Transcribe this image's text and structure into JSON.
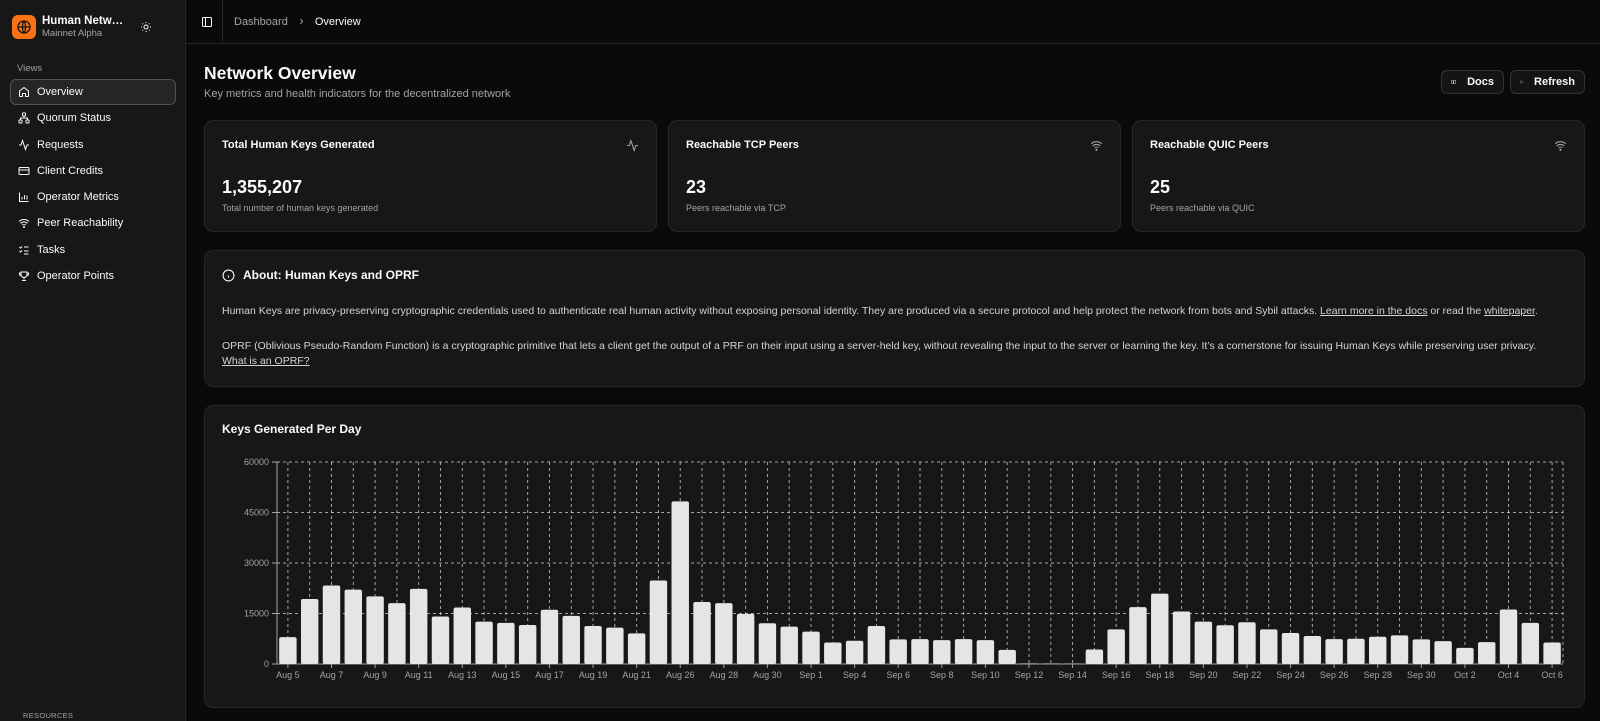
{
  "brand": {
    "name": "Human Network",
    "subtitle": "Mainnet Alpha"
  },
  "sidebar": {
    "section_label": "Views",
    "items": [
      {
        "label": "Overview",
        "icon": "home-icon",
        "active": true
      },
      {
        "label": "Quorum Status",
        "icon": "network-icon"
      },
      {
        "label": "Requests",
        "icon": "activity-icon"
      },
      {
        "label": "Client Credits",
        "icon": "credit-card-icon"
      },
      {
        "label": "Operator Metrics",
        "icon": "bar-chart-icon"
      },
      {
        "label": "Peer Reachability",
        "icon": "wifi-icon"
      },
      {
        "label": "Tasks",
        "icon": "list-checks-icon"
      },
      {
        "label": "Operator Points",
        "icon": "trophy-icon"
      }
    ],
    "resources_label": "RESOURCES"
  },
  "breadcrumb": {
    "parent": "Dashboard",
    "current": "Overview"
  },
  "header": {
    "title": "Network Overview",
    "subtitle": "Key metrics and health indicators for the decentralized network",
    "docs_label": "Docs",
    "refresh_label": "Refresh"
  },
  "stats": [
    {
      "title": "Total Human Keys Generated",
      "value": "1,355,207",
      "desc": "Total number of human keys generated",
      "icon": "activity-icon"
    },
    {
      "title": "Reachable TCP Peers",
      "value": "23",
      "desc": "Peers reachable via TCP",
      "icon": "wifi-icon"
    },
    {
      "title": "Reachable QUIC Peers",
      "value": "25",
      "desc": "Peers reachable via QUIC",
      "icon": "wifi-icon"
    }
  ],
  "about": {
    "title": "About: Human Keys and OPRF",
    "p1_text": "Human Keys are privacy-preserving cryptographic credentials used to authenticate real human activity without exposing personal identity. They are produced via a secure protocol and help protect the network from bots and Sybil attacks.",
    "p1_link1": "Learn more in the docs",
    "p1_mid": "or read the",
    "p1_link2": "whitepaper",
    "p1_end": ".",
    "p2_text": "OPRF (Oblivious Pseudo-Random Function) is a cryptographic primitive that lets a client get the output of a PRF on their input using a server-held key, without revealing the input to the server or learning the key. It’s a cornerstone for issuing Human Keys while preserving user privacy.",
    "p2_link": "What is an OPRF?"
  },
  "chart_data": {
    "type": "bar",
    "title": "Keys Generated Per Day",
    "xlabel": "",
    "ylabel": "",
    "ylim": [
      0,
      60000
    ],
    "yticks": [
      0,
      15000,
      30000,
      45000,
      60000
    ],
    "grid": true,
    "categories": [
      "Aug 5",
      "Aug 6",
      "Aug 7",
      "Aug 8",
      "Aug 9",
      "Aug 10",
      "Aug 11",
      "Aug 12",
      "Aug 13",
      "Aug 14",
      "Aug 15",
      "Aug 16",
      "Aug 17",
      "Aug 18",
      "Aug 19",
      "Aug 20",
      "Aug 21",
      "Aug 25",
      "Aug 26",
      "Aug 27",
      "Aug 28",
      "Aug 29",
      "Aug 30",
      "Aug 31",
      "Sep 1",
      "Sep 2",
      "Sep 4",
      "Sep 5",
      "Sep 6",
      "Sep 7",
      "Sep 8",
      "Sep 9",
      "Sep 10",
      "Sep 11",
      "Sep 12",
      "Sep 13",
      "Sep 14",
      "Sep 15",
      "Sep 16",
      "Sep 17",
      "Sep 18",
      "Sep 19",
      "Sep 20",
      "Sep 21",
      "Sep 22",
      "Sep 23",
      "Sep 24",
      "Sep 25",
      "Sep 26",
      "Sep 27",
      "Sep 28",
      "Sep 29",
      "Sep 30",
      "Oct 1",
      "Oct 2",
      "Oct 3",
      "Oct 4",
      "Oct 5",
      "Oct 6"
    ],
    "tick_labels": [
      "Aug 5",
      "",
      "Aug 7",
      "",
      "Aug 9",
      "",
      "Aug 11",
      "",
      "Aug 13",
      "",
      "Aug 15",
      "",
      "Aug 17",
      "",
      "Aug 19",
      "",
      "Aug 21",
      "",
      "Aug 26",
      "",
      "Aug 28",
      "",
      "Aug 30",
      "",
      "Sep 1",
      "",
      "Sep 4",
      "",
      "Sep 6",
      "",
      "Sep 8",
      "",
      "Sep 10",
      "",
      "Sep 12",
      "",
      "Sep 14",
      "",
      "Sep 16",
      "",
      "Sep 18",
      "",
      "Sep 20",
      "",
      "Sep 22",
      "",
      "Sep 24",
      "",
      "Sep 26",
      "",
      "Sep 28",
      "",
      "Sep 30",
      "",
      "Oct 2",
      "",
      "Oct 4",
      "",
      "Oct 6"
    ],
    "values": [
      8000,
      19300,
      23300,
      22100,
      20100,
      18100,
      22300,
      14100,
      16800,
      12600,
      12200,
      11600,
      16100,
      14300,
      11300,
      10800,
      9100,
      24800,
      48300,
      18400,
      18100,
      14900,
      12100,
      11100,
      9600,
      6400,
      6900,
      11300,
      7300,
      7400,
      7100,
      7400,
      7100,
      4200,
      150,
      100,
      80,
      4300,
      10300,
      16900,
      20900,
      15600,
      12600,
      11500,
      12400,
      10300,
      9200,
      8300,
      7400,
      7500,
      8100,
      8500,
      7300,
      6800,
      4800,
      6500,
      16200,
      12200,
      6400
    ],
    "colors": {
      "bar": "#e5e5e5",
      "grid": "#d4d4d4",
      "axis": "#a3a3a3"
    }
  }
}
